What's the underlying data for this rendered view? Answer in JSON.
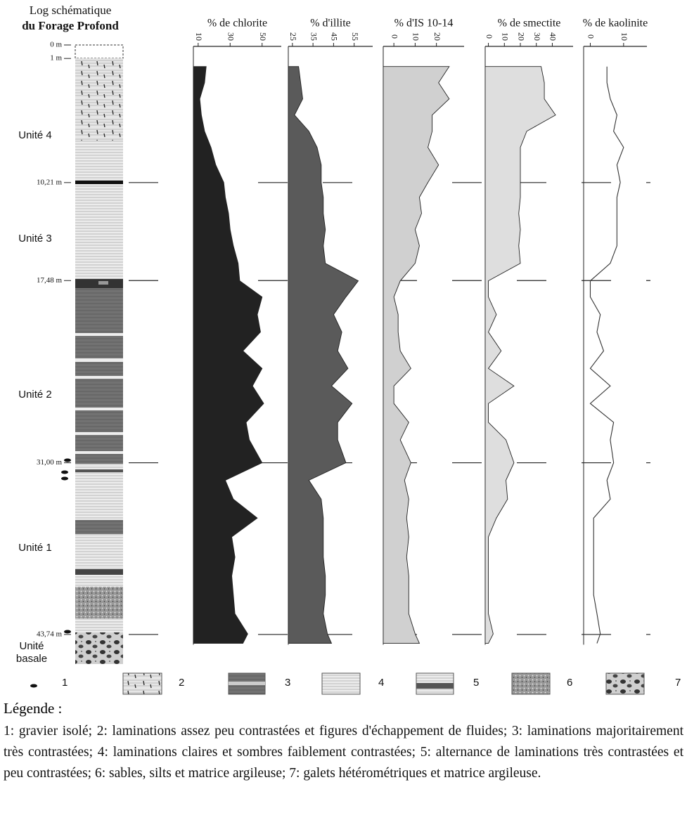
{
  "log": {
    "title": [
      "Log schématique",
      "du Forage Profond"
    ],
    "ylim": [
      0,
      44.5
    ],
    "depth_ticks": [
      {
        "value": 0,
        "label": "0 m"
      },
      {
        "value": 1,
        "label": "1 m"
      },
      {
        "value": 10.21,
        "label": "10,21 m"
      },
      {
        "value": 17.48,
        "label": "17,48 m"
      },
      {
        "value": 31,
        "label": "31,00 m"
      },
      {
        "value": 43.74,
        "label": "43,74 m"
      }
    ],
    "units": [
      "Unité 4",
      "Unité 3",
      "Unité 2",
      "Unité 1"
    ],
    "basal_unit": [
      "Unité",
      "basale"
    ]
  },
  "depth": [
    1.6,
    2.8,
    4.0,
    5.2,
    6.4,
    7.6,
    8.9,
    10.2,
    11.3,
    12.5,
    13.7,
    14.9,
    16.2,
    17.5,
    18.7,
    20.0,
    21.3,
    22.7,
    24.0,
    25.3,
    26.6,
    28.0,
    29.3,
    31.0,
    32.3,
    33.7,
    35.1,
    36.5,
    38.0,
    39.4,
    40.8,
    42.2,
    43.7,
    44.4
  ],
  "chart_data": [
    {
      "type": "area",
      "title": "% de chlorite",
      "color": "#222222",
      "xlim": [
        7,
        62
      ],
      "xticks": [
        10,
        30,
        50
      ],
      "values": [
        15,
        14,
        11,
        12,
        14,
        18,
        21,
        26,
        27,
        29,
        30,
        32,
        35,
        36,
        50,
        47,
        49,
        38,
        50,
        44,
        51,
        40,
        42,
        50,
        27,
        32,
        47,
        31,
        33,
        31,
        32,
        33,
        41,
        38
      ]
    },
    {
      "type": "area",
      "title": "% d'illite",
      "color": "#5a5a5a",
      "xlim": [
        23,
        64
      ],
      "xticks": [
        25,
        35,
        45,
        55
      ],
      "values": [
        28,
        29,
        30,
        26,
        33,
        37,
        39,
        39,
        40,
        40,
        41,
        40,
        41,
        57,
        51,
        45,
        49,
        47,
        52,
        44,
        54,
        47,
        47,
        51,
        33,
        39,
        40,
        40,
        40,
        41,
        41,
        40,
        42,
        44
      ]
    },
    {
      "type": "area",
      "title": "% d'IS 10-14",
      "color": "#d0d0d0",
      "xlim": [
        -5,
        33
      ],
      "xticks": [
        0,
        10,
        20
      ],
      "values": [
        26,
        21,
        26,
        18,
        18,
        16,
        21,
        16,
        12,
        13,
        10,
        12,
        10,
        3,
        0,
        2,
        2,
        3,
        8,
        0,
        0,
        7,
        3,
        8,
        5,
        7,
        6,
        7,
        6,
        7,
        7,
        7,
        10,
        12
      ]
    },
    {
      "type": "area",
      "title": "% de smectite",
      "color": "#dedede",
      "xlim": [
        -2,
        53
      ],
      "xticks": [
        0,
        10,
        20,
        30,
        40
      ],
      "values": [
        33,
        35,
        35,
        42,
        24,
        20,
        20,
        20,
        20,
        19,
        20,
        19,
        20,
        0,
        0,
        5,
        0,
        8,
        0,
        16,
        0,
        0,
        11,
        16,
        11,
        12,
        5,
        0,
        0,
        0,
        0,
        0,
        3,
        0
      ]
    },
    {
      "type": "line",
      "title": "% de kaolinite",
      "color": "#333333",
      "xlim": [
        -2,
        17
      ],
      "xticks": [
        0,
        10
      ],
      "values": [
        5,
        5,
        6,
        8,
        7,
        10,
        8,
        9,
        8,
        8,
        8,
        8,
        6,
        0,
        0,
        3,
        2,
        4,
        0,
        6,
        0,
        7,
        6,
        7,
        5,
        6,
        1,
        1,
        1,
        1,
        1,
        2,
        3,
        2
      ]
    }
  ],
  "legend": {
    "items": [
      "1",
      "2",
      "3",
      "4",
      "5",
      "6",
      "7"
    ],
    "heading": "Légende :",
    "text": "1: gravier isolé; 2: laminations assez peu contrastées et figures d'échappement de fluides; 3: laminations majoritairement très contrastées; 4: laminations claires et sombres faiblement contrastées; 5: alternance de laminations très contrastées et peu contrastées; 6: sables, silts et matrice argileuse; 7: galets hétérométriques et matrice argileuse."
  }
}
